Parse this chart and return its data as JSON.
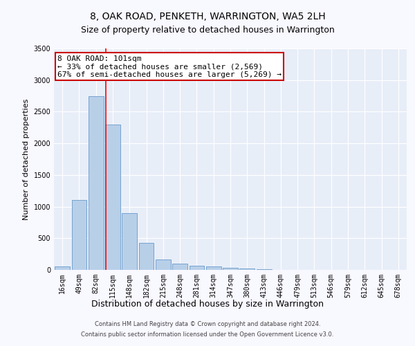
{
  "title": "8, OAK ROAD, PENKETH, WARRINGTON, WA5 2LH",
  "subtitle": "Size of property relative to detached houses in Warrington",
  "xlabel": "Distribution of detached houses by size in Warrington",
  "ylabel": "Number of detached properties",
  "categories": [
    "16sqm",
    "49sqm",
    "82sqm",
    "115sqm",
    "148sqm",
    "182sqm",
    "215sqm",
    "248sqm",
    "281sqm",
    "314sqm",
    "347sqm",
    "380sqm",
    "413sqm",
    "446sqm",
    "479sqm",
    "513sqm",
    "546sqm",
    "579sqm",
    "612sqm",
    "645sqm",
    "678sqm"
  ],
  "values": [
    50,
    1100,
    2750,
    2300,
    900,
    430,
    160,
    100,
    70,
    50,
    30,
    25,
    10,
    5,
    3,
    2,
    1,
    1,
    0,
    0,
    0
  ],
  "bar_color": "#b8cfe8",
  "bar_edge_color": "#6699cc",
  "background_color": "#e8eef8",
  "grid_color": "#ffffff",
  "annotation_text": "8 OAK ROAD: 101sqm\n← 33% of detached houses are smaller (2,569)\n67% of semi-detached houses are larger (5,269) →",
  "annotation_box_color": "#ffffff",
  "annotation_box_edge": "#cc0000",
  "ylim": [
    0,
    3500
  ],
  "yticks": [
    0,
    500,
    1000,
    1500,
    2000,
    2500,
    3000,
    3500
  ],
  "title_fontsize": 10,
  "subtitle_fontsize": 9,
  "ylabel_fontsize": 8,
  "xlabel_fontsize": 9,
  "tick_fontsize": 7,
  "annotation_fontsize": 8,
  "footer_fontsize": 6,
  "footer_line1": "Contains HM Land Registry data © Crown copyright and database right 2024.",
  "footer_line2": "Contains public sector information licensed under the Open Government Licence v3.0.",
  "fig_facecolor": "#f8f8ff"
}
